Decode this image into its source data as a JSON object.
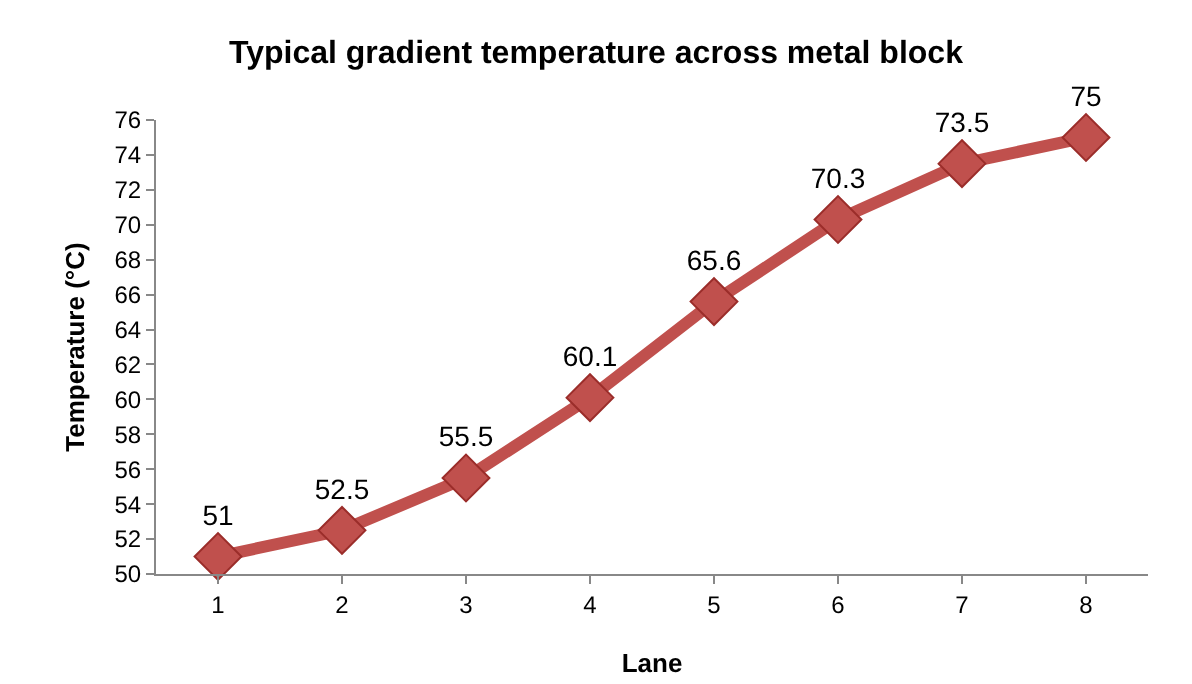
{
  "chart_data": {
    "type": "line",
    "title": "Typical gradient temperature across metal block",
    "xlabel": "Lane",
    "ylabel": "Temperature (°C)",
    "categories": [
      "1",
      "2",
      "3",
      "4",
      "5",
      "6",
      "7",
      "8"
    ],
    "series": [
      {
        "color": "#c0504d",
        "values": [
          51,
          52.5,
          55.5,
          60.1,
          65.6,
          70.3,
          73.5,
          75
        ]
      }
    ],
    "ylim": [
      50,
      76
    ],
    "yticks": [
      50,
      52,
      54,
      56,
      58,
      60,
      62,
      64,
      66,
      68,
      70,
      72,
      74,
      76
    ],
    "data_labels": true,
    "marker": "diamond",
    "line_style": "solid",
    "grid": false
  }
}
